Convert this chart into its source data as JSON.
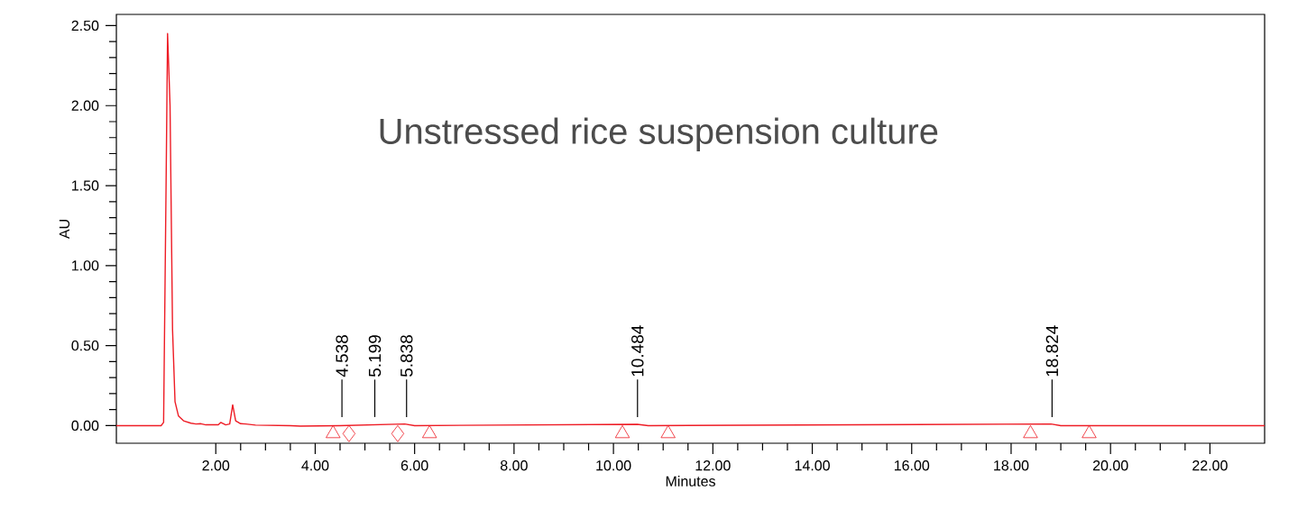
{
  "chart_data": {
    "type": "line",
    "title": "Unstressed rice suspension culture",
    "xlabel": "Minutes",
    "ylabel": "AU",
    "xlim": [
      0,
      23.1
    ],
    "ylim": [
      -0.11,
      2.57
    ],
    "xticks": [
      {
        "value": 2,
        "label": "2.00"
      },
      {
        "value": 4,
        "label": "4.00"
      },
      {
        "value": 6,
        "label": "6.00"
      },
      {
        "value": 8,
        "label": "8.00"
      },
      {
        "value": 10,
        "label": "10.00"
      },
      {
        "value": 12,
        "label": "12.00"
      },
      {
        "value": 14,
        "label": "14.00"
      },
      {
        "value": 16,
        "label": "16.00"
      },
      {
        "value": 18,
        "label": "18.00"
      },
      {
        "value": 20,
        "label": "20.00"
      },
      {
        "value": 22,
        "label": "22.00"
      }
    ],
    "yticks": [
      {
        "value": 0,
        "label": "0.00"
      },
      {
        "value": 0.5,
        "label": "0.50"
      },
      {
        "value": 1,
        "label": "1.00"
      },
      {
        "value": 1.5,
        "label": "1.50"
      },
      {
        "value": 2,
        "label": "2.00"
      },
      {
        "value": 2.5,
        "label": "2.50"
      }
    ],
    "grid": false,
    "series": [
      {
        "marker": "none",
        "color": "#ee1c25",
        "x": [
          0,
          0.9,
          0.95,
          1.0,
          1.03,
          1.08,
          1.13,
          1.18,
          1.25,
          1.35,
          1.5,
          1.6,
          1.7,
          1.8,
          2.05,
          2.1,
          2.2,
          2.28,
          2.34,
          2.4,
          2.5,
          2.6,
          2.8,
          3.5,
          3.7,
          4.5,
          5.8,
          6.0,
          10.48,
          10.7,
          18.8,
          19.0,
          23.1
        ],
        "values": [
          0,
          0,
          0.02,
          1.5,
          2.45,
          2.0,
          0.6,
          0.15,
          0.06,
          0.03,
          0.015,
          0.01,
          0.012,
          0.005,
          0.005,
          0.02,
          0.005,
          0.01,
          0.13,
          0.03,
          0.012,
          0.01,
          0.003,
          0,
          -0.003,
          0,
          0.01,
          0,
          0.008,
          0,
          0.01,
          0,
          0
        ]
      },
      {
        "type": "scatter",
        "marker": "triangle",
        "color": "#ee1c25",
        "x": [
          4.36,
          6.3,
          10.18,
          11.1,
          18.39,
          19.57
        ],
        "values": [
          -0.05,
          -0.05,
          -0.05,
          -0.05,
          -0.05,
          -0.05
        ]
      },
      {
        "type": "scatter",
        "marker": "diamond",
        "color": "#ee1c25",
        "x": [
          4.68,
          5.66
        ],
        "values": [
          -0.05,
          -0.05
        ]
      }
    ],
    "annotations": [
      {
        "text": "4.538",
        "x": 4.538,
        "y": 0
      },
      {
        "text": "5.199",
        "x": 5.199,
        "y": 0
      },
      {
        "text": "5.838",
        "x": 5.838,
        "y": 0
      },
      {
        "text": "10.484",
        "x": 10.484,
        "y": 0
      },
      {
        "text": "18.824",
        "x": 18.824,
        "y": 0
      }
    ]
  }
}
